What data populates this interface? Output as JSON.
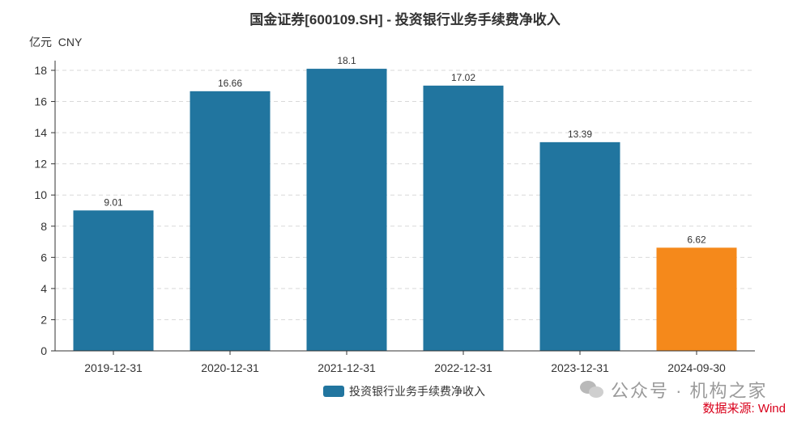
{
  "chart_data": {
    "type": "bar",
    "title": "国金证券[600109.SH] - 投资银行业务手续费净收入",
    "unit_label": "亿元  CNY",
    "categories": [
      "2019-12-31",
      "2020-12-31",
      "2021-12-31",
      "2022-12-31",
      "2023-12-31",
      "2024-09-30"
    ],
    "series": [
      {
        "name": "投资银行业务手续费净收入",
        "values": [
          9.01,
          16.66,
          18.1,
          17.02,
          13.39,
          6.62
        ],
        "color": "#21759f",
        "highlight_color": "#f5891b",
        "highlight_index": 5
      }
    ],
    "ylim": [
      0,
      18
    ],
    "yticks": [
      0,
      2,
      4,
      6,
      8,
      10,
      12,
      14,
      16,
      18
    ],
    "grid": true,
    "legend_position": "bottom-center"
  },
  "watermark": {
    "text": "公众号 · 机构之家"
  },
  "source": "数据来源: Wind"
}
